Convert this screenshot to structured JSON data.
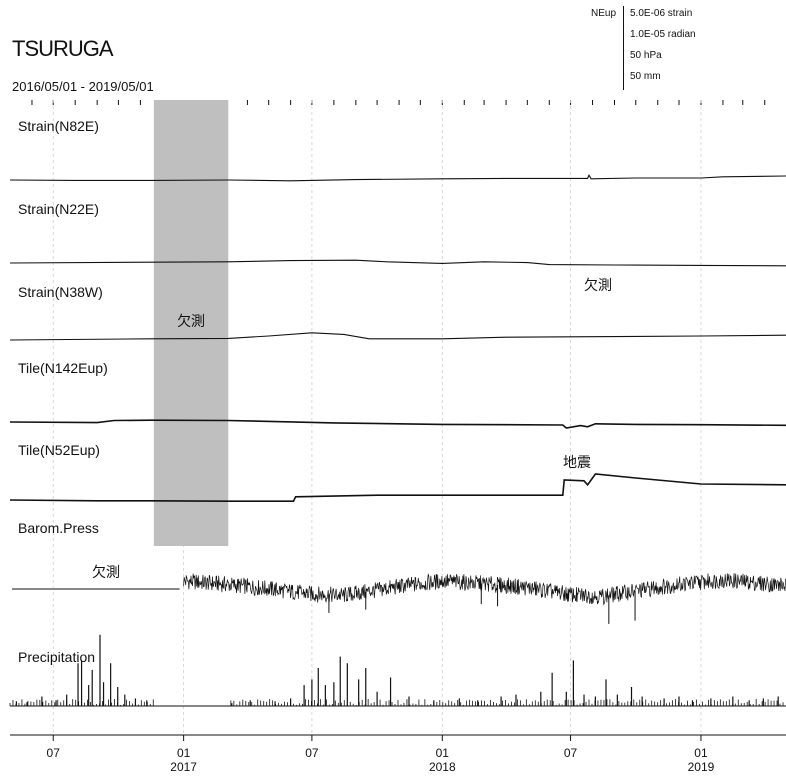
{
  "header": {
    "station": "TSURUGA",
    "period": "2016/05/01 - 2019/05/01"
  },
  "scale_key": {
    "component": "NEup",
    "items": [
      "5.0E-06 strain",
      "1.0E-05 radian",
      "50 hPa",
      "50 mm"
    ]
  },
  "chart_data": {
    "type": "line",
    "title": "TSURUGA",
    "subtitle": "2016/05/01 - 2019/05/01",
    "x_range": [
      "2016-05-01",
      "2019-05-01"
    ],
    "x_ticks": [
      {
        "date": "2016-07-01",
        "month": "07",
        "year": ""
      },
      {
        "date": "2017-01-01",
        "month": "01",
        "year": "2017"
      },
      {
        "date": "2017-07-01",
        "month": "07",
        "year": ""
      },
      {
        "date": "2018-01-01",
        "month": "01",
        "year": "2018"
      },
      {
        "date": "2018-07-01",
        "month": "07",
        "year": ""
      },
      {
        "date": "2019-01-01",
        "month": "01",
        "year": "2019"
      }
    ],
    "missing_periods": [
      {
        "start": "2016-11-20",
        "end": "2017-03-05",
        "label": "欠測"
      }
    ],
    "series": [
      {
        "name": "Strain(N82E)",
        "points": [
          [
            "2016-05-01",
            0
          ],
          [
            "2016-08-01",
            -0.1
          ],
          [
            "2016-11-15",
            -0.1
          ],
          [
            "2017-03-05",
            0
          ],
          [
            "2017-06-01",
            -0.2
          ],
          [
            "2017-09-01",
            0.1
          ],
          [
            "2018-01-01",
            0.3
          ],
          [
            "2018-04-01",
            0.4
          ],
          [
            "2018-07-01",
            0.4
          ],
          [
            "2018-07-25",
            0.4
          ],
          [
            "2018-07-27",
            1.2
          ],
          [
            "2018-07-30",
            0.3
          ],
          [
            "2018-10-01",
            0.5
          ],
          [
            "2019-01-01",
            0.5
          ],
          [
            "2019-02-01",
            0.8
          ],
          [
            "2019-05-01",
            1.0
          ]
        ]
      },
      {
        "name": "Strain(N22E)",
        "points": [
          [
            "2016-05-01",
            0
          ],
          [
            "2016-11-15",
            0.2
          ],
          [
            "2017-03-05",
            0.3
          ],
          [
            "2017-06-01",
            0.6
          ],
          [
            "2017-09-01",
            0.7
          ],
          [
            "2017-10-15",
            0.3
          ],
          [
            "2018-01-01",
            -0.1
          ],
          [
            "2018-03-01",
            0.3
          ],
          [
            "2018-05-01",
            0.1
          ],
          [
            "2018-06-01",
            -0.4
          ],
          [
            "2018-09-01",
            -0.5
          ],
          [
            "2019-01-01",
            -0.6
          ],
          [
            "2019-05-01",
            -0.7
          ]
        ]
      },
      {
        "name": "Strain(N38W)",
        "points": [
          [
            "2016-05-01",
            0
          ],
          [
            "2016-11-15",
            0.3
          ],
          [
            "2017-03-05",
            0.4
          ],
          [
            "2017-05-01",
            1.0
          ],
          [
            "2017-07-01",
            1.8
          ],
          [
            "2017-08-15",
            1.4
          ],
          [
            "2017-09-20",
            0.3
          ],
          [
            "2018-01-01",
            0.3
          ],
          [
            "2018-04-01",
            0.7
          ],
          [
            "2018-07-01",
            0.8
          ],
          [
            "2018-10-01",
            0.9
          ],
          [
            "2019-01-01",
            1.0
          ],
          [
            "2019-05-01",
            1.2
          ]
        ]
      },
      {
        "name": "Tile(N142Eup)",
        "points": [
          [
            "2016-05-01",
            0
          ],
          [
            "2016-09-01",
            -0.2
          ],
          [
            "2016-09-25",
            0.5
          ],
          [
            "2016-11-15",
            0.6
          ],
          [
            "2017-03-05",
            0.5
          ],
          [
            "2017-08-01",
            -0.3
          ],
          [
            "2018-01-01",
            -0.8
          ],
          [
            "2018-06-20",
            -1.0
          ],
          [
            "2018-06-25",
            -2.0
          ],
          [
            "2018-07-15",
            -1.2
          ],
          [
            "2018-07-25",
            -1.6
          ],
          [
            "2018-08-05",
            -0.6
          ],
          [
            "2018-10-01",
            -0.8
          ],
          [
            "2019-01-01",
            -0.9
          ],
          [
            "2019-05-01",
            -1.1
          ]
        ]
      },
      {
        "name": "Tile(N52Eup)",
        "points": [
          [
            "2016-05-01",
            0
          ],
          [
            "2016-09-01",
            -0.2
          ],
          [
            "2016-11-15",
            -0.2
          ],
          [
            "2017-03-05",
            -0.3
          ],
          [
            "2017-06-05",
            -0.3
          ],
          [
            "2017-06-08",
            0.8
          ],
          [
            "2017-10-01",
            1.2
          ],
          [
            "2018-06-20",
            1.2
          ],
          [
            "2018-06-22",
            5.0
          ],
          [
            "2018-07-20",
            4.8
          ],
          [
            "2018-07-25",
            3.8
          ],
          [
            "2018-08-05",
            6.5
          ],
          [
            "2018-10-01",
            5.5
          ],
          [
            "2019-01-01",
            4.0
          ],
          [
            "2019-05-01",
            3.8
          ]
        ]
      },
      {
        "name": "Barom.Press",
        "points": [
          [
            "2017-01-01",
            20
          ],
          [
            "2017-03-01",
            14
          ],
          [
            "2017-05-01",
            6
          ],
          [
            "2017-07-01",
            -4
          ],
          [
            "2017-08-15",
            -6
          ],
          [
            "2017-09-15",
            0
          ],
          [
            "2017-11-01",
            10
          ],
          [
            "2018-01-01",
            20
          ],
          [
            "2018-03-01",
            15
          ],
          [
            "2018-05-01",
            8
          ],
          [
            "2018-07-01",
            -5
          ],
          [
            "2018-08-15",
            -8
          ],
          [
            "2018-10-01",
            2
          ],
          [
            "2018-12-01",
            14
          ],
          [
            "2019-02-01",
            22
          ],
          [
            "2019-05-01",
            12
          ]
        ],
        "spikes": [
          [
            "2017-07-25",
            -38
          ],
          [
            "2017-09-15",
            -32
          ],
          [
            "2018-02-25",
            -22
          ],
          [
            "2018-03-20",
            -26
          ],
          [
            "2018-07-10",
            -18
          ],
          [
            "2018-08-24",
            -58
          ],
          [
            "2018-09-30",
            -52
          ]
        ]
      },
      {
        "name": "Precipitation",
        "bars": [
          [
            "2016-05-10",
            5
          ],
          [
            "2016-05-25",
            4
          ],
          [
            "2016-06-15",
            10
          ],
          [
            "2016-07-05",
            6
          ],
          [
            "2016-07-20",
            12
          ],
          [
            "2016-08-05",
            45
          ],
          [
            "2016-08-10",
            48
          ],
          [
            "2016-08-20",
            22
          ],
          [
            "2016-08-25",
            38
          ],
          [
            "2016-09-05",
            75
          ],
          [
            "2016-09-10",
            25
          ],
          [
            "2016-09-20",
            45
          ],
          [
            "2016-09-30",
            20
          ],
          [
            "2016-10-10",
            12
          ],
          [
            "2016-10-25",
            8
          ],
          [
            "2016-11-10",
            6
          ],
          [
            "2017-03-10",
            3
          ],
          [
            "2017-04-05",
            6
          ],
          [
            "2017-05-10",
            5
          ],
          [
            "2017-06-01",
            8
          ],
          [
            "2017-06-20",
            22
          ],
          [
            "2017-07-01",
            28
          ],
          [
            "2017-07-10",
            40
          ],
          [
            "2017-07-20",
            22
          ],
          [
            "2017-08-01",
            25
          ],
          [
            "2017-08-10",
            52
          ],
          [
            "2017-08-20",
            45
          ],
          [
            "2017-09-05",
            28
          ],
          [
            "2017-09-15",
            40
          ],
          [
            "2017-10-01",
            15
          ],
          [
            "2017-10-20",
            30
          ],
          [
            "2017-11-15",
            10
          ],
          [
            "2017-12-20",
            6
          ],
          [
            "2018-01-25",
            8
          ],
          [
            "2018-02-20",
            6
          ],
          [
            "2018-03-25",
            10
          ],
          [
            "2018-04-15",
            12
          ],
          [
            "2018-05-20",
            15
          ],
          [
            "2018-06-05",
            35
          ],
          [
            "2018-06-25",
            15
          ],
          [
            "2018-07-05",
            48
          ],
          [
            "2018-07-20",
            12
          ],
          [
            "2018-08-05",
            10
          ],
          [
            "2018-08-20",
            28
          ],
          [
            "2018-09-05",
            12
          ],
          [
            "2018-09-25",
            20
          ],
          [
            "2018-10-10",
            10
          ],
          [
            "2018-11-10",
            8
          ],
          [
            "2018-12-01",
            10
          ],
          [
            "2018-12-20",
            6
          ],
          [
            "2019-01-15",
            8
          ],
          [
            "2019-02-15",
            10
          ],
          [
            "2019-03-10",
            6
          ],
          [
            "2019-03-30",
            8
          ],
          [
            "2019-04-20",
            10
          ]
        ]
      }
    ],
    "annotations": [
      {
        "text": "欠測",
        "target": "Strain(N38W)",
        "date": "2018-08-01"
      },
      {
        "text": "地震",
        "target": "Tile(N52Eup)",
        "date": "2018-06-22"
      },
      {
        "text": "欠測",
        "target": "Barom.Press",
        "date": "2016-10-01"
      }
    ]
  }
}
